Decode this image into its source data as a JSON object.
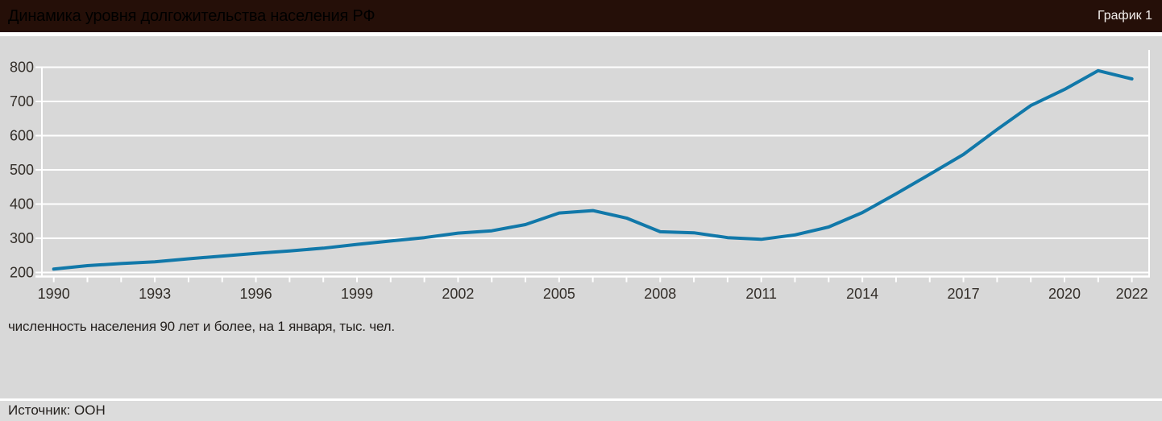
{
  "header": {
    "title": "Динамика уровня долгожительства населения РФ",
    "badge": "График 1"
  },
  "caption": "численность населения 90 лет и более, на 1 января, тыс. чел.",
  "footer": {
    "source": "Источник: ООН"
  },
  "colors": {
    "header_bg": "#250f08",
    "header_text": "#ffffff",
    "chart_bg": "#d8d8d8",
    "footer_bg": "#dcdcdc",
    "grid": "#ffffff",
    "line": "#1178a9",
    "tick_text": "#332e29"
  },
  "chart_data": {
    "type": "line",
    "title": "Динамика уровня долгожительства населения РФ",
    "ylabel": "численность населения 90 лет и более, на 1 января, тыс. чел.",
    "source": "ООН",
    "x": [
      1990,
      1991,
      1992,
      1993,
      1994,
      1995,
      1996,
      1997,
      1998,
      1999,
      2000,
      2001,
      2002,
      2003,
      2004,
      2005,
      2006,
      2007,
      2008,
      2009,
      2010,
      2011,
      2012,
      2013,
      2014,
      2015,
      2016,
      2017,
      2018,
      2019,
      2020,
      2021,
      2022
    ],
    "values": [
      210,
      220,
      226,
      231,
      240,
      248,
      256,
      263,
      271,
      282,
      292,
      302,
      315,
      322,
      340,
      374,
      381,
      359,
      319,
      316,
      302,
      297,
      310,
      333,
      375,
      430,
      487,
      545,
      618,
      688,
      735,
      790,
      766
    ],
    "ylim": [
      200,
      800
    ],
    "yticks": [
      200,
      300,
      400,
      500,
      600,
      700,
      800
    ],
    "xtick_labels": [
      "1990",
      "1993",
      "1996",
      "1999",
      "2002",
      "2005",
      "2008",
      "2011",
      "2014",
      "2017",
      "2020",
      "2022"
    ],
    "grid": true,
    "legend": false
  }
}
